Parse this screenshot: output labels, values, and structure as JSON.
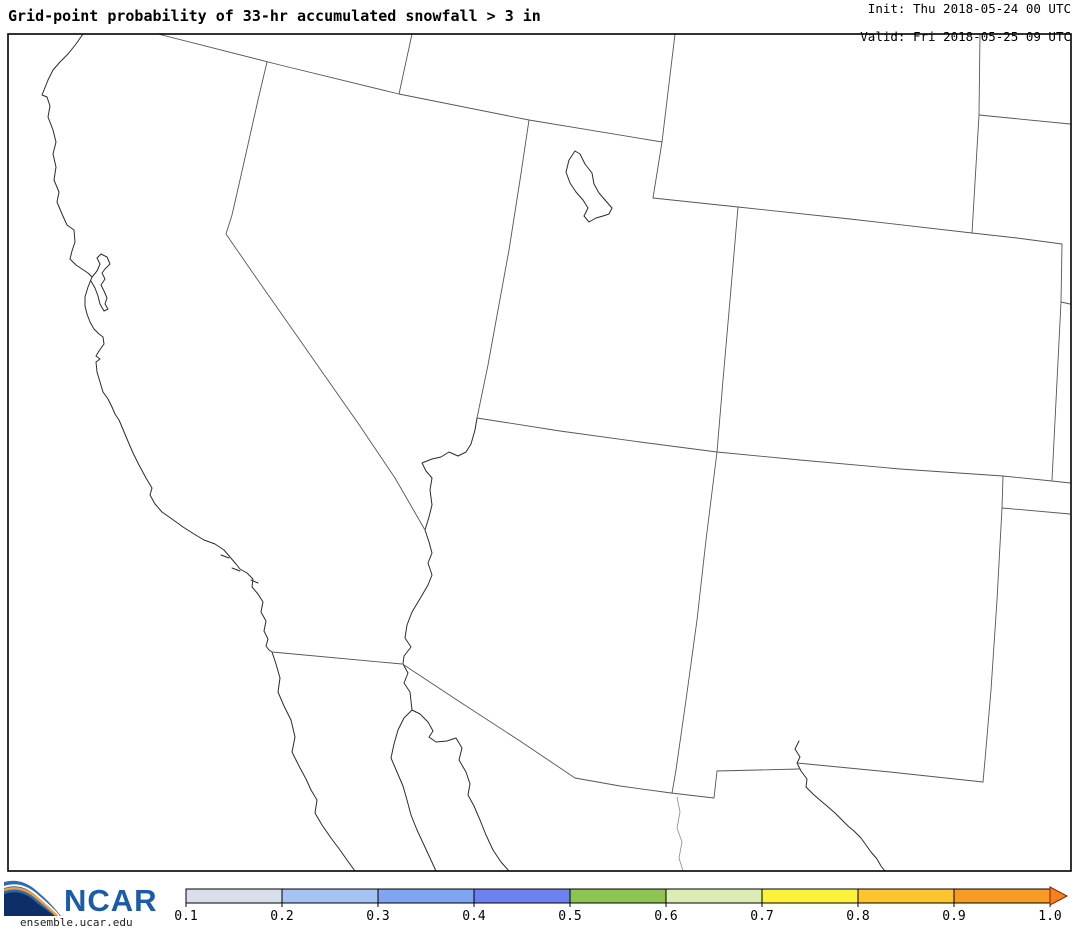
{
  "header": {
    "title": "Grid-point probability of 33-hr accumulated snowfall > 3 in",
    "init": "Init: Thu 2018-05-24 00 UTC",
    "valid": "Valid: Fri 2018-05-25 09 UTC"
  },
  "footer": {
    "brand": "NCAR",
    "site": "ensemble.ucar.edu",
    "brand_color": "#1a5caa",
    "swoosh_navy": "#0d2e66",
    "swoosh_blue": "#2e6ab0",
    "swoosh_orange": "#f59c2f"
  },
  "colorbar": {
    "tick_labels": [
      "0.1",
      "0.2",
      "0.3",
      "0.4",
      "0.5",
      "0.6",
      "0.7",
      "0.8",
      "0.9",
      "1.0"
    ],
    "segment_colors": [
      "#d8e0eb",
      "#a6c3f3",
      "#81a5f3",
      "#6c82ef",
      "#8cc351",
      "#dcedb3",
      "#fdf23b",
      "#fcc42e",
      "#f89b24"
    ],
    "arrow_color": "#f5821f",
    "arrow_outline": "#8b1e04",
    "outline_color": "#000000"
  },
  "map": {
    "frame_color": "#000000",
    "border_color": "#555555",
    "coast_color": "#2b2b2b",
    "mexico_state_color": "#8a8a8a"
  }
}
